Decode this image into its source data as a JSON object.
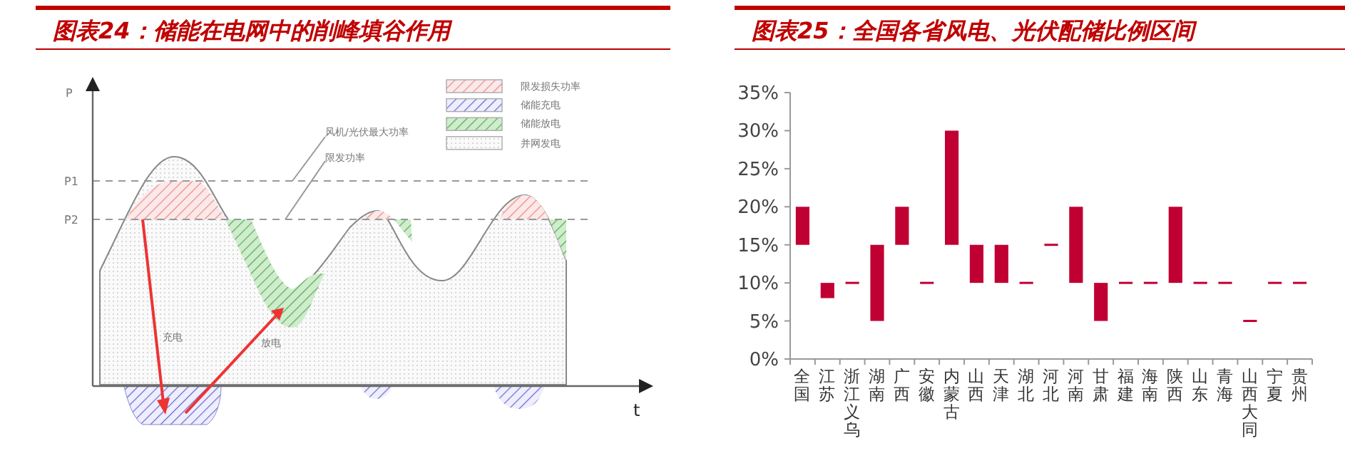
{
  "chart_data": [
    {
      "type": "other",
      "title": "图表24：储能在电网中的削峰填谷作用",
      "annotations": [
        "P",
        "P1",
        "P2",
        "t",
        "风机/光伏最大功率",
        "限发功率",
        "充电",
        "放电",
        "限发损失功率",
        "储能充电",
        "储能放电",
        "并网发电"
      ]
    },
    {
      "type": "bar",
      "title": "图表25：全国各省风电、光伏配储比例区间",
      "categories": [
        "全国",
        "江苏",
        "浙江义乌",
        "湖南",
        "广西",
        "安徽",
        "内蒙古",
        "山西",
        "天津",
        "湖北",
        "河北",
        "河南",
        "甘肃",
        "福建",
        "海南",
        "陕西",
        "山东",
        "青海",
        "山西大同",
        "宁夏",
        "贵州"
      ],
      "base": [
        15,
        8,
        10,
        5,
        15,
        10,
        15,
        10,
        10,
        10,
        15,
        10,
        5,
        10,
        10,
        10,
        10,
        10,
        5,
        10,
        10
      ],
      "values": [
        5,
        2,
        0,
        10,
        5,
        0,
        15,
        5,
        5,
        0,
        0,
        10,
        5,
        0,
        0,
        10,
        0,
        0,
        0,
        0,
        0
      ],
      "color": "#c00032",
      "ylim": [
        0,
        35
      ],
      "yticks": [
        {
          "value": 0,
          "label": "0%"
        },
        {
          "value": 5,
          "label": "5%"
        },
        {
          "value": 10,
          "label": "10%"
        },
        {
          "value": 15,
          "label": "15%"
        },
        {
          "value": 20,
          "label": "20%"
        },
        {
          "value": 25,
          "label": "25%"
        },
        {
          "value": 30,
          "label": "30%"
        },
        {
          "value": 35,
          "label": "35%"
        }
      ],
      "grid": false
    }
  ]
}
